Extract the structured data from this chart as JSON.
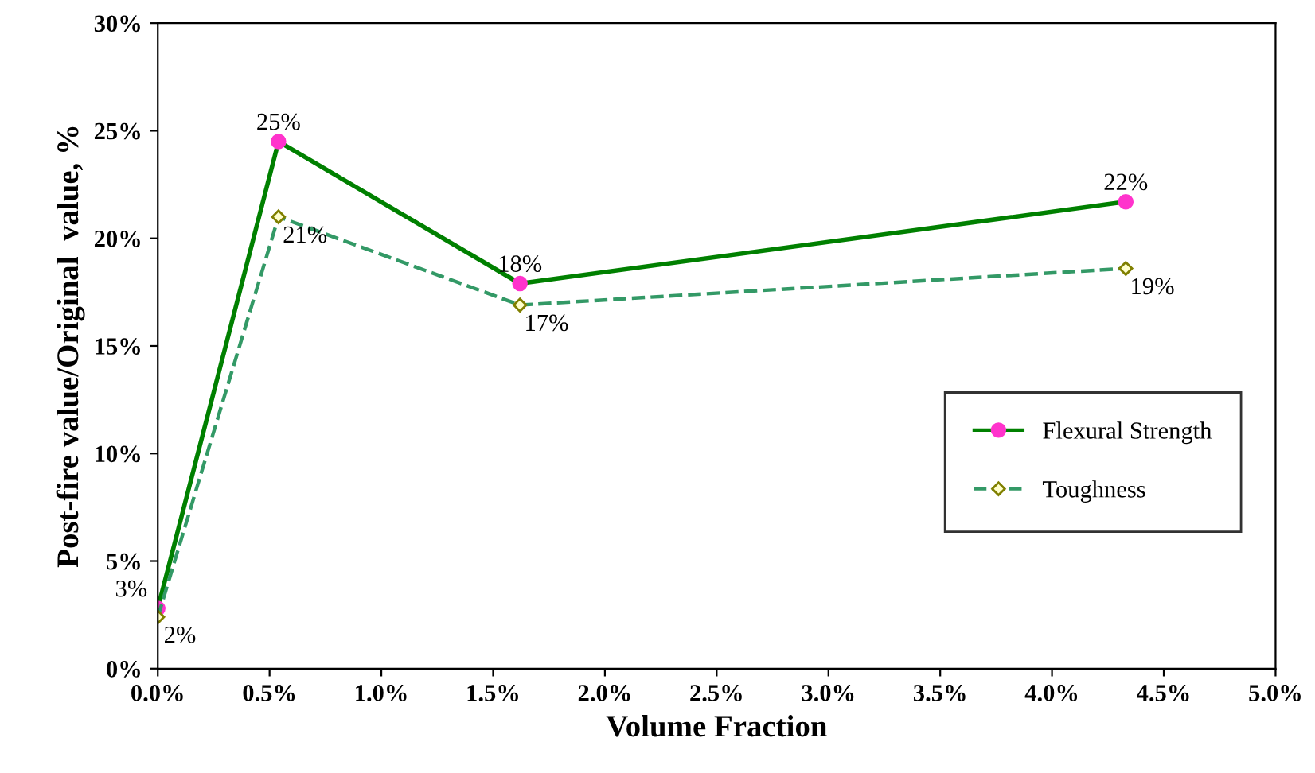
{
  "chart_data": {
    "type": "line",
    "xlabel": "Volume Fraction",
    "ylabel": "Post-fire value/Original  value, %",
    "xlim": [
      0,
      5
    ],
    "xticks": [
      {
        "value": 0,
        "label": "0.0%"
      },
      {
        "value": 0.5,
        "label": "0.5%"
      },
      {
        "value": 1,
        "label": "1.0%"
      },
      {
        "value": 1.5,
        "label": "1.5%"
      },
      {
        "value": 2,
        "label": "2.0%"
      },
      {
        "value": 2.5,
        "label": "2.5%"
      },
      {
        "value": 3,
        "label": "3.0%"
      },
      {
        "value": 3.5,
        "label": "3.5%"
      },
      {
        "value": 4,
        "label": "4.0%"
      },
      {
        "value": 4.5,
        "label": "4.5%"
      },
      {
        "value": 5,
        "label": "5.0%"
      }
    ],
    "ylim": [
      0,
      30
    ],
    "yticks": [
      {
        "value": 0,
        "label": "0%"
      },
      {
        "value": 5,
        "label": "5%"
      },
      {
        "value": 10,
        "label": "10%"
      },
      {
        "value": 15,
        "label": "15%"
      },
      {
        "value": 20,
        "label": "20%"
      },
      {
        "value": 25,
        "label": "25%"
      },
      {
        "value": 30,
        "label": "30%"
      }
    ],
    "grid": false,
    "legend": "right",
    "series": [
      {
        "name": "Flexural Strength",
        "color": "#008000",
        "colors": [
          "#ff33cc",
          "#ff33cc",
          "#ff33cc",
          "#ff33cc"
        ],
        "marker": "circle",
        "line_style": "solid",
        "x": [
          0,
          0.54,
          1.62,
          4.33
        ],
        "values": [
          2.8,
          24.5,
          17.9,
          21.7
        ],
        "value_labels": [
          "3%",
          "25%",
          "18%",
          "22%"
        ]
      },
      {
        "name": "Toughness",
        "color": "#339966",
        "colors": [
          "#ffffcc",
          "#ffffcc",
          "#ffffcc",
          "#ffffcc"
        ],
        "marker": "diamond",
        "line_style": "dashed",
        "x": [
          0,
          0.54,
          1.62,
          4.33
        ],
        "values": [
          2.4,
          21.0,
          16.9,
          18.6
        ],
        "value_labels": [
          "2%",
          "21%",
          "17%",
          "19%"
        ]
      }
    ]
  }
}
